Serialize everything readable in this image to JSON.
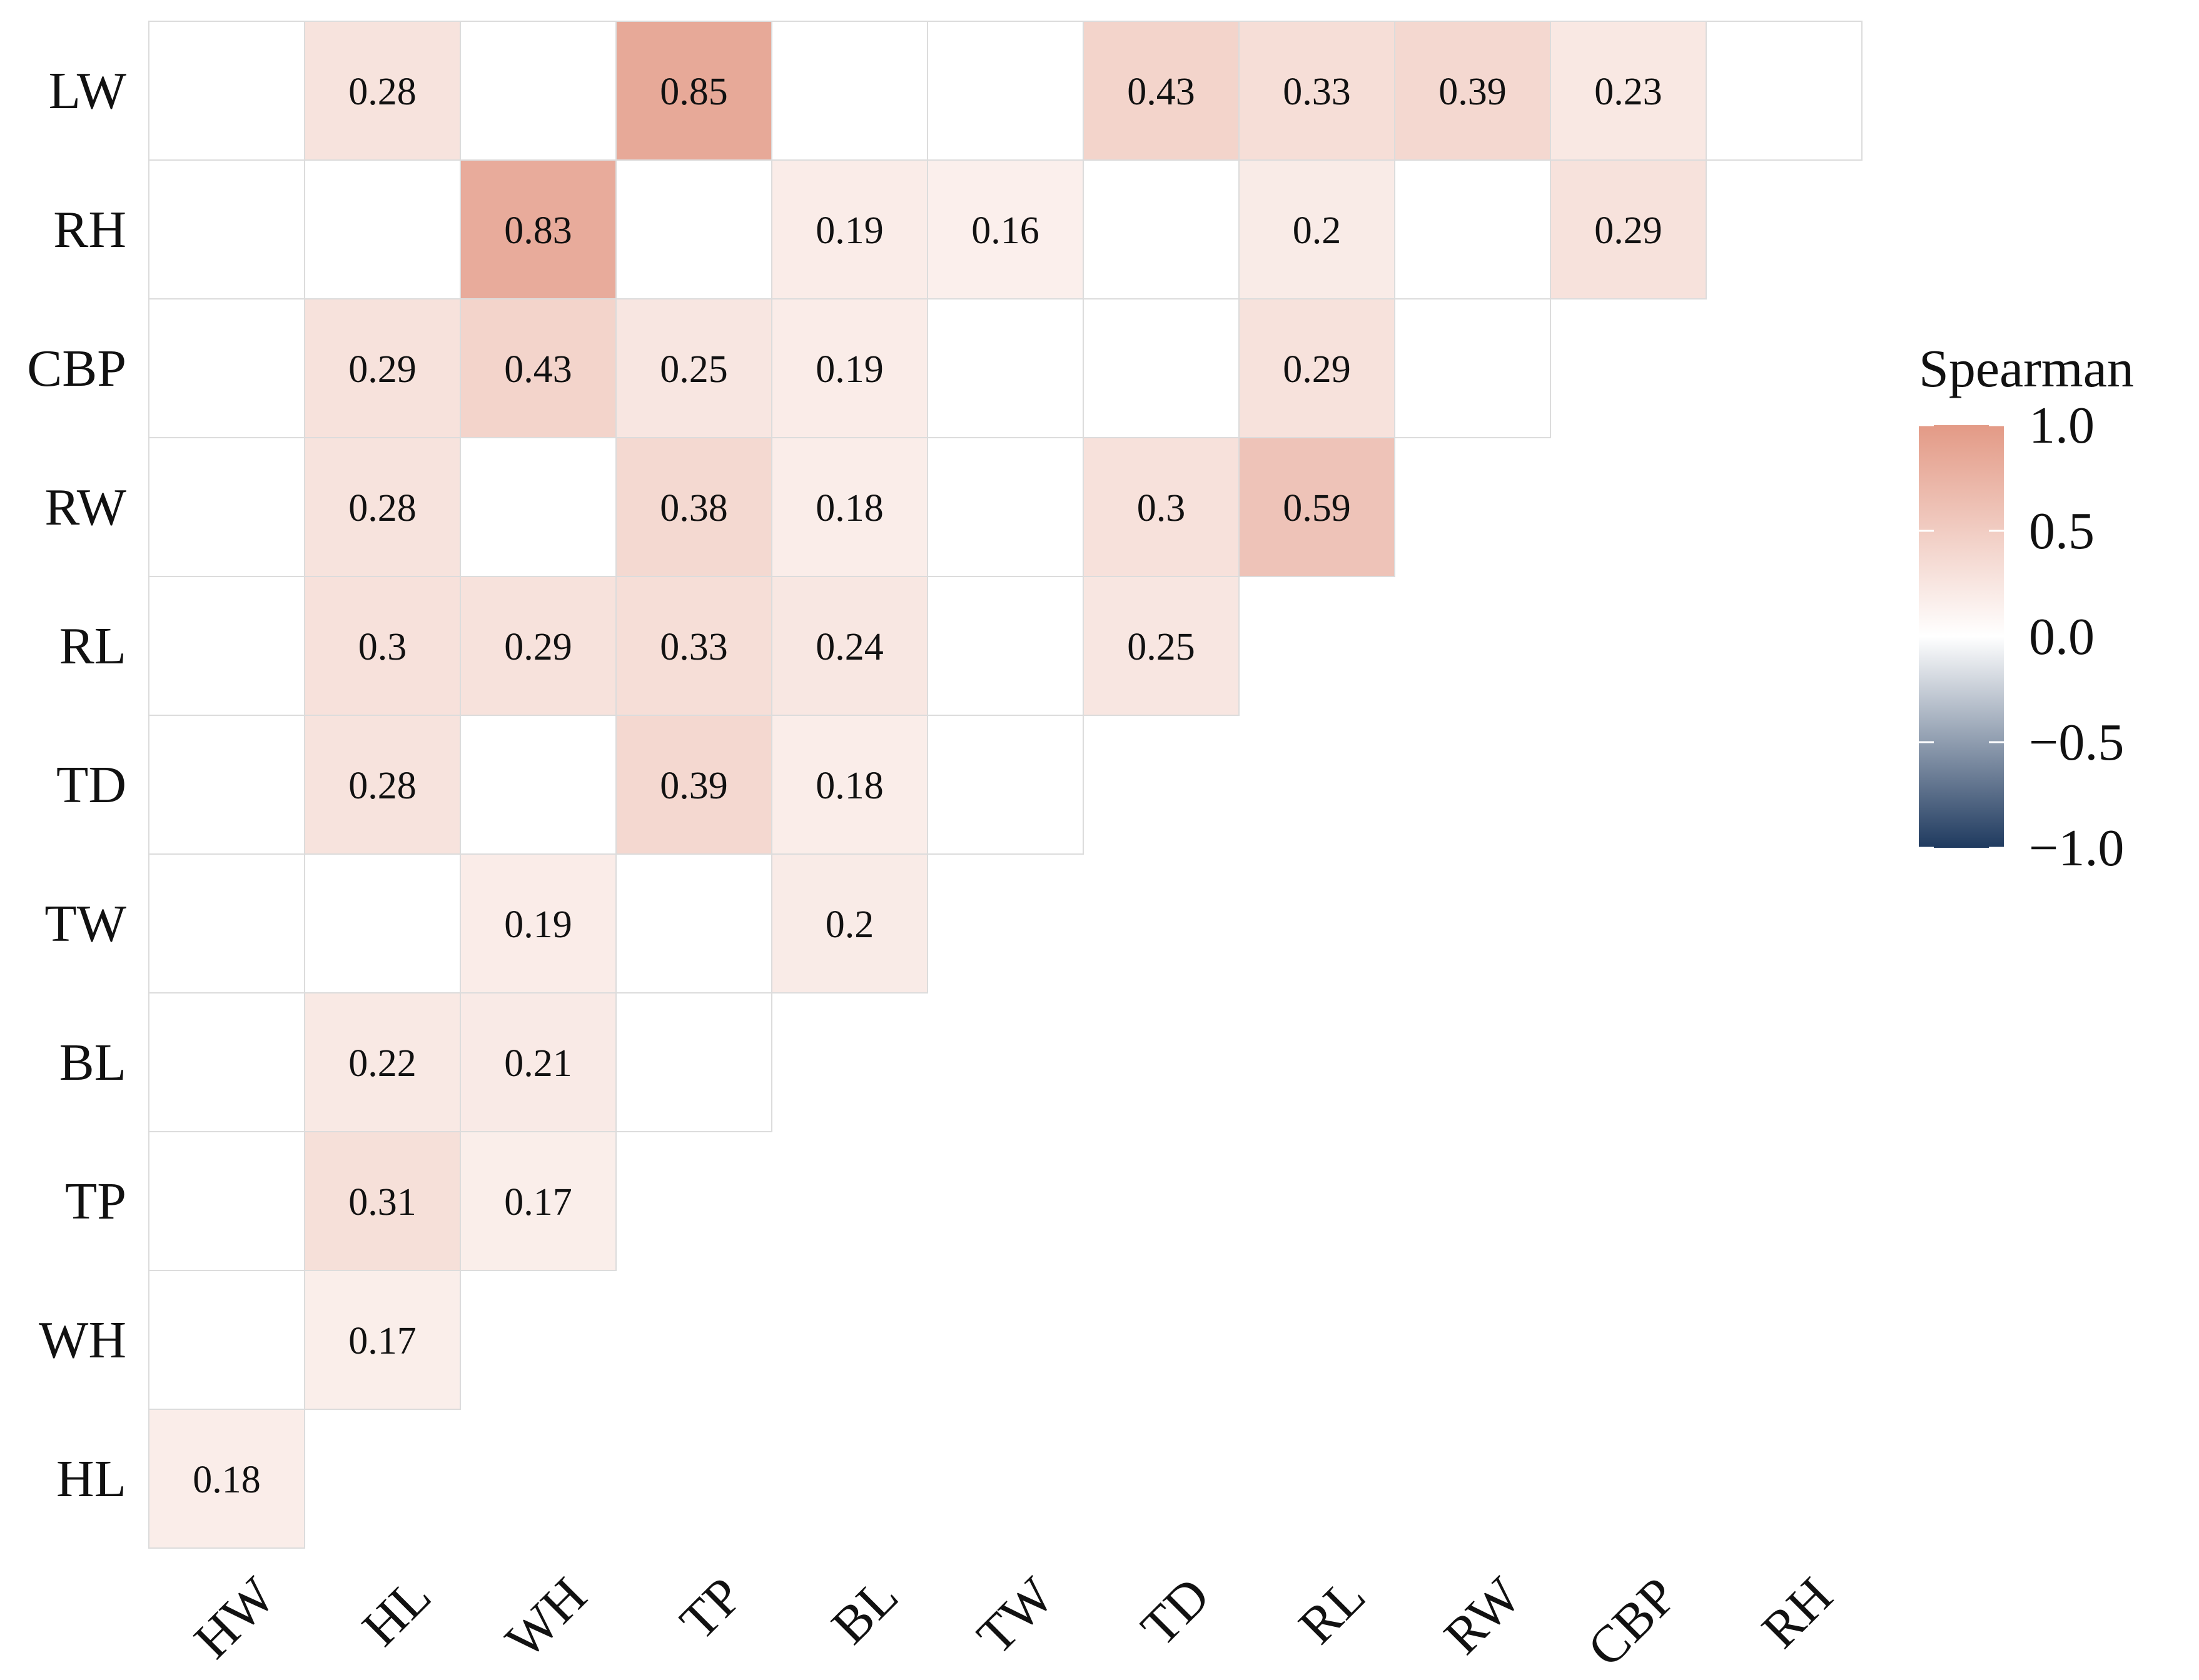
{
  "chart_data": {
    "type": "heatmap",
    "title": "",
    "xlabel": "",
    "ylabel": "",
    "x_categories": [
      "HW",
      "HL",
      "WH",
      "TP",
      "BL",
      "TW",
      "TD",
      "RL",
      "RW",
      "CBP",
      "RH"
    ],
    "y_categories": [
      "LW",
      "RH",
      "CBP",
      "RW",
      "RL",
      "TD",
      "TW",
      "BL",
      "TP",
      "WH",
      "HL"
    ],
    "rows": [
      {
        "y": "LW",
        "values": [
          null,
          0.28,
          null,
          0.85,
          null,
          null,
          0.43,
          0.33,
          0.39,
          0.23,
          null
        ]
      },
      {
        "y": "RH",
        "values": [
          null,
          null,
          0.83,
          null,
          0.19,
          0.16,
          null,
          0.2,
          null,
          0.29
        ]
      },
      {
        "y": "CBP",
        "values": [
          null,
          0.29,
          0.43,
          0.25,
          0.19,
          null,
          null,
          0.29,
          null
        ]
      },
      {
        "y": "RW",
        "values": [
          null,
          0.28,
          null,
          0.38,
          0.18,
          null,
          0.3,
          0.59
        ]
      },
      {
        "y": "RL",
        "values": [
          null,
          0.3,
          0.29,
          0.33,
          0.24,
          null,
          0.25
        ]
      },
      {
        "y": "TD",
        "values": [
          null,
          0.28,
          null,
          0.39,
          0.18,
          null
        ]
      },
      {
        "y": "TW",
        "values": [
          null,
          null,
          0.19,
          null,
          0.2
        ]
      },
      {
        "y": "BL",
        "values": [
          null,
          0.22,
          0.21,
          null
        ]
      },
      {
        "y": "TP",
        "values": [
          null,
          0.31,
          0.17
        ]
      },
      {
        "y": "WH",
        "values": [
          null,
          0.17
        ]
      },
      {
        "y": "HL",
        "values": [
          0.18
        ]
      }
    ],
    "color_scale": {
      "low": "#1f3a5f",
      "mid": "#ffffff",
      "high": "#e39a86",
      "range": [
        -1.0,
        1.0
      ]
    },
    "legend": {
      "title": "Spearman",
      "ticks": [
        1.0,
        0.5,
        0.0,
        -0.5,
        -1.0
      ],
      "tick_labels": [
        "1.0",
        "0.5",
        "0.0",
        "−0.5",
        "−1.0"
      ],
      "position": "right"
    },
    "grid_color": "#dcdcdc",
    "text_color": "#111111"
  }
}
